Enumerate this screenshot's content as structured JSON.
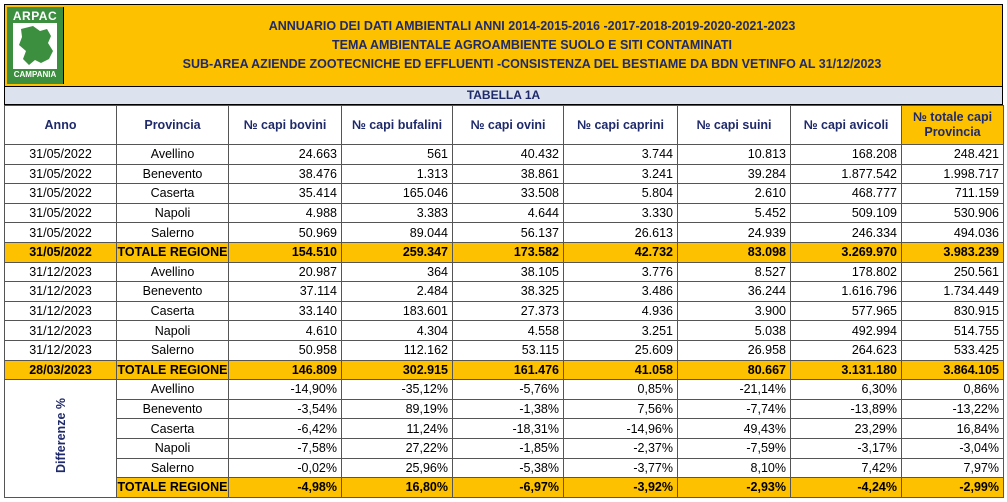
{
  "logo": {
    "top": "ARPAC",
    "bottom": "CAMPANIA"
  },
  "header": {
    "line1": "ANNUARIO DEI DATI AMBIENTALI ANNI 2014-2015-2016 -2017-2018-2019-2020-2021-2023",
    "line2": "TEMA AMBIENTALE AGROAMBIENTE SUOLO E SITI CONTAMINATI",
    "line3": "SUB-AREA AZIENDE ZOOTECNICHE ED EFFLUENTI -CONSISTENZA DEL BESTIAME  DA BDN VETINFO AL 31/12/2023"
  },
  "table_title": "TABELLA 1A",
  "columns": [
    "Anno",
    "Provincia",
    "№ capi bovini",
    "№ capi bufalini",
    "№ capi ovini",
    "№ capi caprini",
    "№ capi suini",
    "№ capi avicoli",
    "№ totale capi Provincia"
  ],
  "rows_2022": [
    [
      "31/05/2022",
      "Avellino",
      "24.663",
      "561",
      "40.432",
      "3.744",
      "10.813",
      "168.208",
      "248.421"
    ],
    [
      "31/05/2022",
      "Benevento",
      "38.476",
      "1.313",
      "38.861",
      "3.241",
      "39.284",
      "1.877.542",
      "1.998.717"
    ],
    [
      "31/05/2022",
      "Caserta",
      "35.414",
      "165.046",
      "33.508",
      "5.804",
      "2.610",
      "468.777",
      "711.159"
    ],
    [
      "31/05/2022",
      "Napoli",
      "4.988",
      "3.383",
      "4.644",
      "3.330",
      "5.452",
      "509.109",
      "530.906"
    ],
    [
      "31/05/2022",
      "Salerno",
      "50.969",
      "89.044",
      "56.137",
      "26.613",
      "24.939",
      "246.334",
      "494.036"
    ]
  ],
  "total_2022": [
    "31/05/2022",
    "TOTALE REGIONE",
    "154.510",
    "259.347",
    "173.582",
    "42.732",
    "83.098",
    "3.269.970",
    "3.983.239"
  ],
  "rows_2023": [
    [
      "31/12/2023",
      "Avellino",
      "20.987",
      "364",
      "38.105",
      "3.776",
      "8.527",
      "178.802",
      "250.561"
    ],
    [
      "31/12/2023",
      "Benevento",
      "37.114",
      "2.484",
      "38.325",
      "3.486",
      "36.244",
      "1.616.796",
      "1.734.449"
    ],
    [
      "31/12/2023",
      "Caserta",
      "33.140",
      "183.601",
      "27.373",
      "4.936",
      "3.900",
      "577.965",
      "830.915"
    ],
    [
      "31/12/2023",
      "Napoli",
      "4.610",
      "4.304",
      "4.558",
      "3.251",
      "5.038",
      "492.994",
      "514.755"
    ],
    [
      "31/12/2023",
      "Salerno",
      "50.958",
      "112.162",
      "53.115",
      "25.609",
      "26.958",
      "264.623",
      "533.425"
    ]
  ],
  "total_2023": [
    "28/03/2023",
    "TOTALE REGIONE",
    "146.809",
    "302.915",
    "161.476",
    "41.058",
    "80.667",
    "3.131.180",
    "3.864.105"
  ],
  "diff_label": "Differenze %",
  "diff_rows": [
    [
      "Avellino",
      "-14,90%",
      "-35,12%",
      "-5,76%",
      "0,85%",
      "-21,14%",
      "6,30%",
      "0,86%"
    ],
    [
      "Benevento",
      "-3,54%",
      "89,19%",
      "-1,38%",
      "7,56%",
      "-7,74%",
      "-13,89%",
      "-13,22%"
    ],
    [
      "Caserta",
      "-6,42%",
      "11,24%",
      "-18,31%",
      "-14,96%",
      "49,43%",
      "23,29%",
      "16,84%"
    ],
    [
      "Napoli",
      "-7,58%",
      "27,22%",
      "-1,85%",
      "-2,37%",
      "-7,59%",
      "-3,17%",
      "-3,04%"
    ],
    [
      "Salerno",
      "-0,02%",
      "25,96%",
      "-5,38%",
      "-3,77%",
      "8,10%",
      "7,42%",
      "7,97%"
    ]
  ],
  "diff_total": [
    "TOTALE REGIONE",
    "-4,98%",
    "16,80%",
    "-6,97%",
    "-3,92%",
    "-2,93%",
    "-4,24%",
    "-2,99%"
  ],
  "colors": {
    "accent": "#fdc100",
    "title_text": "#1f2a6b",
    "logo_green": "#3b8f3e",
    "subheader_bg": "#dde3ee"
  }
}
